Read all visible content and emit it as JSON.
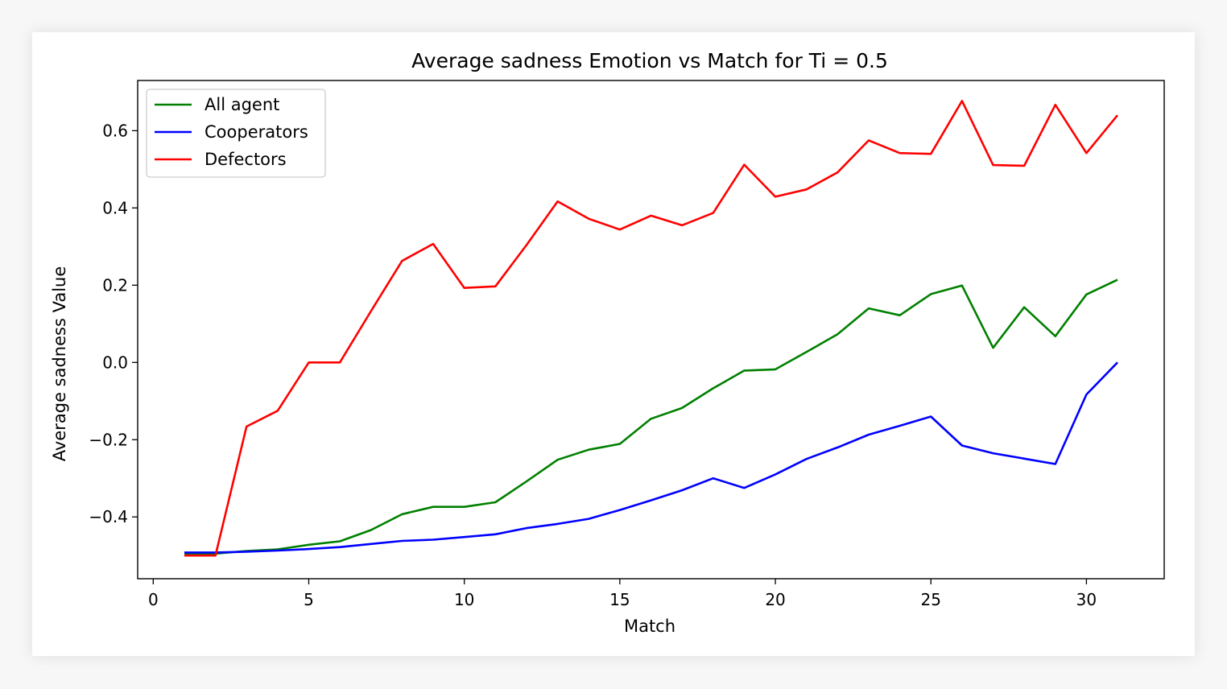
{
  "chart_data": {
    "type": "line",
    "title": "Average sadness Emotion vs Match for Ti = 0.5",
    "xlabel": "Match",
    "ylabel": "Average sadness Value",
    "xlim": [
      -0.5,
      32.5
    ],
    "ylim": [
      -0.56,
      0.73
    ],
    "xticks": [
      0,
      5,
      10,
      15,
      20,
      25,
      30
    ],
    "xtick_labels": [
      "0",
      "5",
      "10",
      "15",
      "20",
      "25",
      "30"
    ],
    "yticks": [
      -0.4,
      -0.2,
      0.0,
      0.2,
      0.4,
      0.6
    ],
    "ytick_labels": [
      "−0.4",
      "−0.2",
      "0.0",
      "0.2",
      "0.4",
      "0.6"
    ],
    "legend_position": "top-left",
    "grid": false,
    "x": [
      1,
      2,
      3,
      4,
      5,
      6,
      7,
      8,
      9,
      10,
      11,
      12,
      13,
      14,
      15,
      16,
      17,
      18,
      19,
      20,
      21,
      22,
      23,
      24,
      25,
      26,
      27,
      28,
      29,
      30,
      31
    ],
    "series": [
      {
        "name": "All agent",
        "color": "#008000",
        "values": [
          -0.495,
          -0.495,
          -0.488,
          -0.484,
          -0.472,
          -0.463,
          -0.434,
          -0.393,
          -0.374,
          -0.374,
          -0.362,
          -0.308,
          -0.252,
          -0.226,
          -0.211,
          -0.146,
          -0.118,
          -0.067,
          -0.021,
          -0.018,
          0.027,
          0.073,
          0.14,
          0.122,
          0.177,
          0.199,
          0.038,
          0.143,
          0.068,
          0.176,
          0.214
        ]
      },
      {
        "name": "Cooperators",
        "color": "#0000ff",
        "values": [
          -0.492,
          -0.492,
          -0.49,
          -0.487,
          -0.483,
          -0.478,
          -0.47,
          -0.462,
          -0.459,
          -0.452,
          -0.445,
          -0.429,
          -0.418,
          -0.405,
          -0.382,
          -0.357,
          -0.331,
          -0.3,
          -0.325,
          -0.29,
          -0.25,
          -0.22,
          -0.187,
          -0.164,
          -0.14,
          -0.215,
          -0.235,
          -0.249,
          -0.263,
          -0.083,
          0.0
        ]
      },
      {
        "name": "Defectors",
        "color": "#ff0000",
        "values": [
          -0.5,
          -0.5,
          -0.166,
          -0.125,
          0.0,
          0.0,
          0.133,
          0.263,
          0.307,
          0.193,
          0.197,
          0.304,
          0.417,
          0.372,
          0.344,
          0.38,
          0.355,
          0.387,
          0.512,
          0.429,
          0.448,
          0.492,
          0.575,
          0.542,
          0.54,
          0.677,
          0.511,
          0.509,
          0.667,
          0.542,
          0.64
        ]
      }
    ]
  }
}
